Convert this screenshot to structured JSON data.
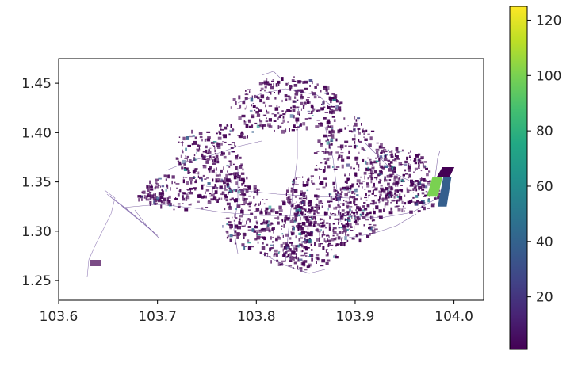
{
  "chart_data": {
    "type": "map",
    "xlim": [
      103.6,
      104.03
    ],
    "ylim": [
      1.23,
      1.475
    ],
    "x_ticks": [
      103.6,
      103.7,
      103.8,
      103.9,
      104.0
    ],
    "x_tick_labels": [
      "103.6",
      "103.7",
      "103.8",
      "103.9",
      "104.0"
    ],
    "y_ticks": [
      1.25,
      1.3,
      1.35,
      1.4,
      1.45
    ],
    "y_tick_labels": [
      "1.25",
      "1.30",
      "1.35",
      "1.40",
      "1.45"
    ],
    "grid": false,
    "colorbar": {
      "colormap": "viridis",
      "range": [
        1,
        125
      ],
      "ticks": [
        20,
        40,
        60,
        80,
        100,
        120
      ],
      "tick_labels": [
        "20",
        "40",
        "60",
        "80",
        "100",
        "120"
      ]
    },
    "highlighted_features": [
      {
        "lon": [
          103.975,
          103.986
        ],
        "lat": [
          1.335,
          1.355
        ],
        "value": 100
      },
      {
        "lon": [
          103.986,
          103.995
        ],
        "lat": [
          1.325,
          1.355
        ],
        "value": 40
      },
      {
        "lon": [
          103.985,
          103.998
        ],
        "lat": [
          1.355,
          1.365
        ],
        "value": 5
      }
    ],
    "colors": {
      "viridis": [
        "#440154",
        "#482475",
        "#414487",
        "#355f8d",
        "#2a788e",
        "#21918c",
        "#22a884",
        "#44bf70",
        "#7ad151",
        "#bddf26",
        "#fde725"
      ],
      "low_value": "#440154",
      "axis": "#000000"
    }
  }
}
